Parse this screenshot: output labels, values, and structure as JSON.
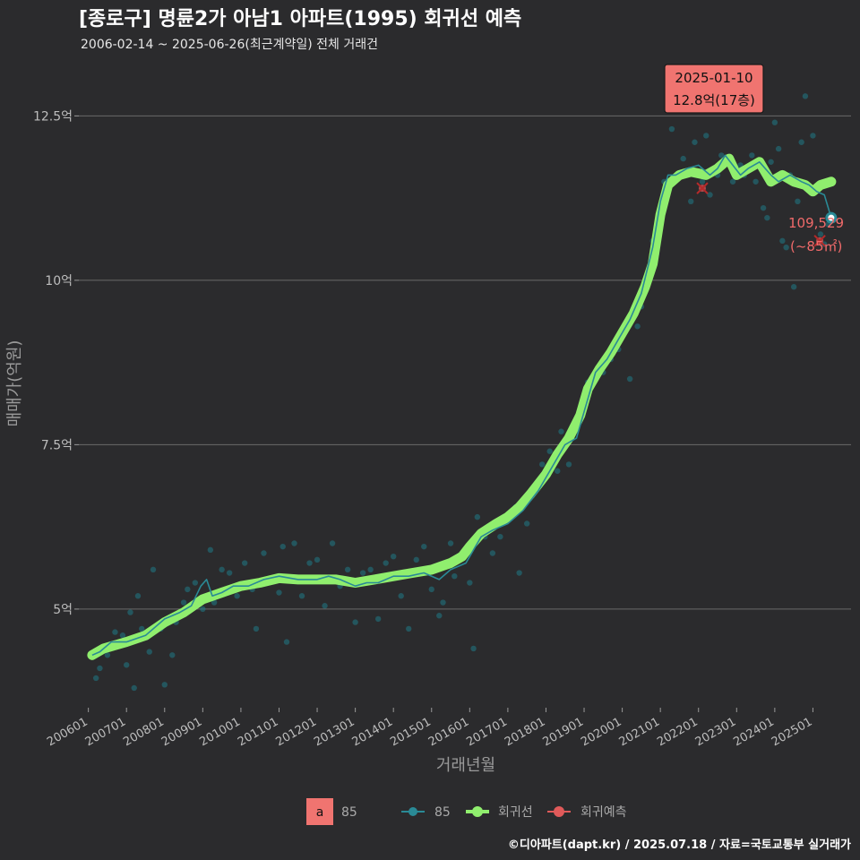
{
  "chart_data": {
    "type": "line",
    "title": "[종로구] 명륜2가 아남1 아파트(1995) 회귀선 예측",
    "subtitle": "2006-02-14 ~ 2025-06-26(최근계약일) 전체 거래건",
    "xlabel": "거래년월",
    "ylabel": "매매가(억원)",
    "ylim": [
      3.5,
      13.2
    ],
    "yticks": [
      {
        "v": 5,
        "label": "5억"
      },
      {
        "v": 7.5,
        "label": "7.5억"
      },
      {
        "v": 10,
        "label": "10억"
      },
      {
        "v": 12.5,
        "label": "12.5억"
      }
    ],
    "xlim": [
      2005.75,
      2026.0
    ],
    "xticks": [
      "200601",
      "200701",
      "200801",
      "200901",
      "201001",
      "201101",
      "201201",
      "201301",
      "201401",
      "201501",
      "201601",
      "201701",
      "201801",
      "201901",
      "202001",
      "202101",
      "202201",
      "202301",
      "202401",
      "202501"
    ],
    "series": [
      {
        "name": "85",
        "kind": "monthly-average-line",
        "color": "#2a8a96",
        "points": [
          [
            2006.1,
            4.3
          ],
          [
            2006.3,
            4.35
          ],
          [
            2006.6,
            4.5
          ],
          [
            2007.0,
            4.5
          ],
          [
            2007.5,
            4.6
          ],
          [
            2008.0,
            4.85
          ],
          [
            2008.4,
            4.95
          ],
          [
            2008.7,
            5.05
          ],
          [
            2008.95,
            5.35
          ],
          [
            2009.1,
            5.45
          ],
          [
            2009.25,
            5.2
          ],
          [
            2009.5,
            5.25
          ],
          [
            2009.8,
            5.35
          ],
          [
            2010.2,
            5.35
          ],
          [
            2010.6,
            5.45
          ],
          [
            2011.0,
            5.5
          ],
          [
            2011.5,
            5.45
          ],
          [
            2012.0,
            5.45
          ],
          [
            2012.3,
            5.5
          ],
          [
            2012.6,
            5.45
          ],
          [
            2013.0,
            5.35
          ],
          [
            2013.3,
            5.4
          ],
          [
            2013.6,
            5.4
          ],
          [
            2014.0,
            5.5
          ],
          [
            2014.4,
            5.5
          ],
          [
            2014.8,
            5.55
          ],
          [
            2015.2,
            5.45
          ],
          [
            2015.5,
            5.6
          ],
          [
            2015.9,
            5.7
          ],
          [
            2016.1,
            5.9
          ],
          [
            2016.3,
            6.1
          ],
          [
            2016.6,
            6.2
          ],
          [
            2017.0,
            6.3
          ],
          [
            2017.4,
            6.5
          ],
          [
            2017.8,
            6.8
          ],
          [
            2018.2,
            7.2
          ],
          [
            2018.5,
            7.5
          ],
          [
            2018.8,
            7.6
          ],
          [
            2019.0,
            8.0
          ],
          [
            2019.3,
            8.6
          ],
          [
            2019.6,
            8.8
          ],
          [
            2019.9,
            9.1
          ],
          [
            2020.2,
            9.4
          ],
          [
            2020.5,
            9.8
          ],
          [
            2020.8,
            10.5
          ],
          [
            2021.0,
            11.2
          ],
          [
            2021.2,
            11.6
          ],
          [
            2021.4,
            11.6
          ],
          [
            2021.7,
            11.7
          ],
          [
            2022.0,
            11.75
          ],
          [
            2022.3,
            11.6
          ],
          [
            2022.5,
            11.7
          ],
          [
            2022.7,
            11.9
          ],
          [
            2022.9,
            11.75
          ],
          [
            2023.1,
            11.6
          ],
          [
            2023.3,
            11.7
          ],
          [
            2023.6,
            11.8
          ],
          [
            2023.9,
            11.6
          ],
          [
            2024.1,
            11.5
          ],
          [
            2024.4,
            11.6
          ],
          [
            2024.7,
            11.5
          ],
          [
            2024.9,
            11.45
          ],
          [
            2025.1,
            11.35
          ],
          [
            2025.3,
            11.3
          ],
          [
            2025.48,
            10.95
          ]
        ]
      },
      {
        "name": "회귀선",
        "kind": "smoothed-regression",
        "color": "#90ee6e",
        "points": [
          [
            2006.1,
            4.3
          ],
          [
            2006.4,
            4.4
          ],
          [
            2007.0,
            4.5
          ],
          [
            2007.5,
            4.6
          ],
          [
            2008.0,
            4.8
          ],
          [
            2008.5,
            4.95
          ],
          [
            2009.0,
            5.15
          ],
          [
            2009.5,
            5.25
          ],
          [
            2010.0,
            5.35
          ],
          [
            2010.5,
            5.4
          ],
          [
            2011.0,
            5.47
          ],
          [
            2011.5,
            5.45
          ],
          [
            2012.0,
            5.45
          ],
          [
            2012.5,
            5.45
          ],
          [
            2013.0,
            5.4
          ],
          [
            2013.5,
            5.45
          ],
          [
            2014.0,
            5.5
          ],
          [
            2014.5,
            5.55
          ],
          [
            2015.0,
            5.6
          ],
          [
            2015.5,
            5.7
          ],
          [
            2015.8,
            5.8
          ],
          [
            2016.0,
            5.95
          ],
          [
            2016.3,
            6.15
          ],
          [
            2016.7,
            6.3
          ],
          [
            2017.0,
            6.4
          ],
          [
            2017.3,
            6.55
          ],
          [
            2017.6,
            6.75
          ],
          [
            2018.0,
            7.05
          ],
          [
            2018.3,
            7.35
          ],
          [
            2018.6,
            7.6
          ],
          [
            2018.9,
            7.95
          ],
          [
            2019.1,
            8.35
          ],
          [
            2019.4,
            8.65
          ],
          [
            2019.7,
            8.9
          ],
          [
            2020.0,
            9.2
          ],
          [
            2020.3,
            9.5
          ],
          [
            2020.6,
            9.9
          ],
          [
            2020.8,
            10.25
          ],
          [
            2021.0,
            11.0
          ],
          [
            2021.2,
            11.45
          ],
          [
            2021.5,
            11.6
          ],
          [
            2021.8,
            11.65
          ],
          [
            2022.2,
            11.6
          ],
          [
            2022.5,
            11.7
          ],
          [
            2022.8,
            11.85
          ],
          [
            2023.0,
            11.6
          ],
          [
            2023.3,
            11.7
          ],
          [
            2023.6,
            11.8
          ],
          [
            2023.9,
            11.5
          ],
          [
            2024.2,
            11.6
          ],
          [
            2024.5,
            11.5
          ],
          [
            2024.8,
            11.45
          ],
          [
            2025.0,
            11.35
          ],
          [
            2025.2,
            11.45
          ],
          [
            2025.48,
            11.5
          ]
        ]
      },
      {
        "name": "회귀예측",
        "kind": "prediction",
        "color": "#e05a5a",
        "points": [
          [
            2022.1,
            11.4
          ],
          [
            2025.18,
            10.6
          ]
        ]
      }
    ],
    "scatter": {
      "name": "85",
      "color": "#1f7a86",
      "points": [
        [
          2006.2,
          3.95
        ],
        [
          2006.3,
          4.1
        ],
        [
          2006.5,
          4.3
        ],
        [
          2006.7,
          4.65
        ],
        [
          2006.9,
          4.6
        ],
        [
          2007.0,
          4.15
        ],
        [
          2007.1,
          4.95
        ],
        [
          2007.2,
          3.8
        ],
        [
          2007.3,
          5.2
        ],
        [
          2007.4,
          4.7
        ],
        [
          2007.6,
          4.35
        ],
        [
          2007.7,
          5.6
        ],
        [
          2007.9,
          4.7
        ],
        [
          2008.0,
          3.85
        ],
        [
          2008.2,
          4.3
        ],
        [
          2008.3,
          4.8
        ],
        [
          2008.5,
          5.1
        ],
        [
          2008.6,
          5.3
        ],
        [
          2008.8,
          5.4
        ],
        [
          2009.0,
          5.0
        ],
        [
          2009.2,
          5.9
        ],
        [
          2009.3,
          5.1
        ],
        [
          2009.5,
          5.6
        ],
        [
          2009.7,
          5.55
        ],
        [
          2009.9,
          5.2
        ],
        [
          2010.1,
          5.7
        ],
        [
          2010.3,
          5.3
        ],
        [
          2010.4,
          4.7
        ],
        [
          2010.6,
          5.85
        ],
        [
          2010.8,
          5.45
        ],
        [
          2011.0,
          5.25
        ],
        [
          2011.1,
          5.95
        ],
        [
          2011.2,
          4.5
        ],
        [
          2011.4,
          6.0
        ],
        [
          2011.6,
          5.2
        ],
        [
          2011.8,
          5.7
        ],
        [
          2012.0,
          5.75
        ],
        [
          2012.2,
          5.05
        ],
        [
          2012.4,
          6.0
        ],
        [
          2012.6,
          5.35
        ],
        [
          2012.8,
          5.6
        ],
        [
          2013.0,
          4.8
        ],
        [
          2013.2,
          5.55
        ],
        [
          2013.4,
          5.6
        ],
        [
          2013.6,
          4.85
        ],
        [
          2013.8,
          5.7
        ],
        [
          2014.0,
          5.8
        ],
        [
          2014.2,
          5.2
        ],
        [
          2014.4,
          4.7
        ],
        [
          2014.6,
          5.75
        ],
        [
          2014.8,
          5.95
        ],
        [
          2015.0,
          5.3
        ],
        [
          2015.2,
          4.9
        ],
        [
          2015.3,
          5.1
        ],
        [
          2015.5,
          6.0
        ],
        [
          2015.6,
          5.5
        ],
        [
          2015.8,
          5.8
        ],
        [
          2016.0,
          5.4
        ],
        [
          2016.1,
          4.4
        ],
        [
          2016.2,
          6.4
        ],
        [
          2016.4,
          6.1
        ],
        [
          2016.6,
          5.85
        ],
        [
          2016.8,
          6.1
        ],
        [
          2017.0,
          6.4
        ],
        [
          2017.2,
          6.55
        ],
        [
          2017.3,
          5.55
        ],
        [
          2017.5,
          6.3
        ],
        [
          2017.7,
          6.8
        ],
        [
          2017.9,
          7.2
        ],
        [
          2018.1,
          7.4
        ],
        [
          2018.3,
          7.1
        ],
        [
          2018.4,
          7.7
        ],
        [
          2018.6,
          7.2
        ],
        [
          2018.8,
          7.85
        ],
        [
          2019.0,
          8.1
        ],
        [
          2019.1,
          8.45
        ],
        [
          2019.3,
          8.5
        ],
        [
          2019.5,
          8.6
        ],
        [
          2019.7,
          8.8
        ],
        [
          2019.9,
          8.95
        ],
        [
          2020.1,
          9.3
        ],
        [
          2020.2,
          8.5
        ],
        [
          2020.4,
          9.3
        ],
        [
          2020.5,
          9.6
        ],
        [
          2020.6,
          10.0
        ],
        [
          2020.8,
          10.6
        ],
        [
          2020.9,
          10.4
        ],
        [
          2021.0,
          11.1
        ],
        [
          2021.1,
          11.5
        ],
        [
          2021.2,
          11.35
        ],
        [
          2021.3,
          12.3
        ],
        [
          2021.5,
          11.6
        ],
        [
          2021.6,
          11.85
        ],
        [
          2021.8,
          11.2
        ],
        [
          2021.9,
          12.1
        ],
        [
          2022.1,
          11.5
        ],
        [
          2022.2,
          12.2
        ],
        [
          2022.3,
          11.3
        ],
        [
          2022.5,
          11.6
        ],
        [
          2022.6,
          11.9
        ],
        [
          2022.8,
          11.8
        ],
        [
          2022.9,
          11.5
        ],
        [
          2023.1,
          11.75
        ],
        [
          2023.2,
          11.6
        ],
        [
          2023.4,
          11.9
        ],
        [
          2023.5,
          11.5
        ],
        [
          2023.7,
          11.1
        ],
        [
          2023.8,
          10.95
        ],
        [
          2023.9,
          11.8
        ],
        [
          2024.0,
          12.4
        ],
        [
          2024.1,
          12.0
        ],
        [
          2024.2,
          10.6
        ],
        [
          2024.3,
          10.5
        ],
        [
          2024.4,
          11.6
        ],
        [
          2024.5,
          9.9
        ],
        [
          2024.6,
          11.2
        ],
        [
          2024.7,
          12.1
        ],
        [
          2024.8,
          12.8
        ],
        [
          2024.9,
          11.4
        ],
        [
          2025.0,
          12.2
        ],
        [
          2025.2,
          10.7
        ],
        [
          2025.3,
          10.55
        ],
        [
          2025.4,
          10.85
        ]
      ]
    },
    "annotations": {
      "max_date": "2025-01-10",
      "max_label": "12.8억(17층)",
      "max_point": [
        2024.8,
        12.8
      ],
      "last_point": [
        2025.48,
        10.95
      ],
      "prediction_value": "109,529",
      "prediction_area": "(~85㎡)"
    },
    "legend": {
      "text_key_glyph": "a",
      "text_key_label": "85",
      "items": [
        {
          "name": "85",
          "color": "#2a8a96"
        },
        {
          "name": "회귀선",
          "color": "#90ee6e"
        },
        {
          "name": "회귀예측",
          "color": "#e05a5a"
        }
      ],
      "position": "bottom"
    },
    "caption": "©디아파트(dapt.kr) / 2025.07.18 / 자료=국토교통부 실거래가"
  }
}
